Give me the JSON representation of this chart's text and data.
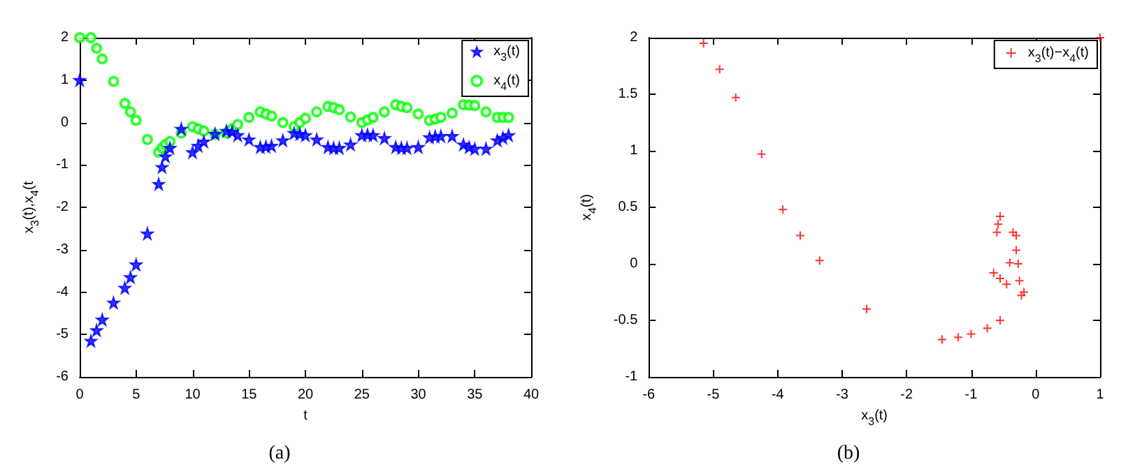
{
  "chart_data": [
    {
      "type": "scatter",
      "title": "(a)",
      "xlabel": "t",
      "ylabel": "x$_{3}$(t),x$_{4}$(t",
      "xlim": [
        0,
        40
      ],
      "xticks": [
        0,
        5,
        10,
        15,
        20,
        25,
        30,
        35,
        40
      ],
      "ylim": [
        -6,
        2
      ],
      "yticks": [
        -6,
        -5,
        -4,
        -3,
        -2,
        -1,
        0,
        1,
        2
      ],
      "grid": false,
      "legend": "top right",
      "series": [
        {
          "name": "x$_{3}$(t)",
          "color": "#0000ff",
          "marker": "star",
          "x": [
            0,
            1,
            1.5,
            2,
            3,
            4,
            4.5,
            5,
            6,
            7,
            7.3,
            7.6,
            8,
            9,
            10,
            10.5,
            11,
            12,
            13,
            13.5,
            14,
            15,
            16,
            16.5,
            17,
            18,
            19,
            19.5,
            20,
            21,
            22,
            22.5,
            23,
            24,
            25,
            25.5,
            26,
            27,
            28,
            28.5,
            29,
            30,
            31,
            31.5,
            32,
            33,
            34,
            34.5,
            35,
            36,
            37,
            37.5,
            38
          ],
          "values": [
            1,
            -5.15,
            -4.9,
            -4.65,
            -4.25,
            -3.9,
            -3.65,
            -3.35,
            -2.62,
            -1.45,
            -1.05,
            -0.8,
            -0.6,
            -0.15,
            -0.7,
            -0.55,
            -0.45,
            -0.27,
            -0.2,
            -0.22,
            -0.3,
            -0.4,
            -0.58,
            -0.57,
            -0.55,
            -0.42,
            -0.25,
            -0.27,
            -0.3,
            -0.4,
            -0.58,
            -0.6,
            -0.6,
            -0.52,
            -0.3,
            -0.29,
            -0.3,
            -0.37,
            -0.58,
            -0.6,
            -0.6,
            -0.58,
            -0.35,
            -0.33,
            -0.32,
            -0.32,
            -0.52,
            -0.58,
            -0.62,
            -0.62,
            -0.42,
            -0.36,
            -0.3
          ]
        },
        {
          "name": "x$_{4}$(t)",
          "color": "#00ff00",
          "marker": "circle",
          "x": [
            0,
            1,
            1.5,
            2,
            3,
            4,
            4.5,
            5,
            6,
            7,
            7.3,
            7.6,
            8,
            9,
            10,
            10.5,
            11,
            12,
            13,
            13.5,
            14,
            15,
            16,
            16.5,
            17,
            18,
            19,
            19.5,
            20,
            21,
            22,
            22.5,
            23,
            24,
            25,
            25.5,
            26,
            27,
            28,
            28.5,
            29,
            30,
            31,
            31.5,
            32,
            33,
            34,
            34.5,
            35,
            36,
            37,
            37.5,
            38
          ],
          "values": [
            2,
            2,
            1.75,
            1.5,
            0.97,
            0.45,
            0.25,
            0.05,
            -0.4,
            -0.7,
            -0.6,
            -0.52,
            -0.45,
            -0.25,
            -0.1,
            -0.15,
            -0.2,
            -0.28,
            -0.25,
            -0.15,
            -0.05,
            0.12,
            0.25,
            0.2,
            0.15,
            0,
            -0.1,
            0,
            0.1,
            0.25,
            0.38,
            0.35,
            0.3,
            0.13,
            0,
            0.06,
            0.12,
            0.25,
            0.42,
            0.38,
            0.35,
            0.2,
            0.05,
            0.08,
            0.12,
            0.22,
            0.42,
            0.41,
            0.4,
            0.25,
            0.12,
            0.12,
            0.12
          ]
        }
      ]
    },
    {
      "type": "scatter",
      "title": "(b)",
      "xlabel": "x$_{3}$(t)",
      "ylabel": "x$_{4}$(t)",
      "xlim": [
        -6,
        1
      ],
      "xticks": [
        -6,
        -5,
        -4,
        -3,
        -2,
        -1,
        0,
        1
      ],
      "ylim": [
        -1,
        2
      ],
      "yticks": [
        -1,
        -0.5,
        0,
        0.5,
        1,
        1.5,
        2
      ],
      "grid": false,
      "legend": "top right",
      "series": [
        {
          "name": "x$_{3}$(t)−x$_{4}$(t)",
          "color": "#ff0000",
          "marker": "cross",
          "x": [
            1,
            -5.15,
            -4.9,
            -4.65,
            -4.25,
            -3.92,
            -3.65,
            -3.35,
            -2.62,
            -1.45,
            -1.2,
            -1.0,
            -0.75,
            -0.55,
            -0.65,
            -0.55,
            -0.45,
            -0.55,
            -0.58,
            -0.6,
            -0.35,
            -0.3,
            -0.3,
            -0.27,
            -0.25,
            -0.22,
            -0.4,
            -0.18
          ],
          "values": [
            2,
            1.95,
            1.72,
            1.47,
            0.97,
            0.48,
            0.25,
            0.03,
            -0.4,
            -0.67,
            -0.65,
            -0.62,
            -0.57,
            -0.5,
            -0.08,
            -0.13,
            -0.18,
            0.42,
            0.35,
            0.28,
            0.28,
            0.25,
            0.12,
            0,
            -0.15,
            -0.28,
            0.01,
            -0.25
          ]
        }
      ]
    }
  ]
}
